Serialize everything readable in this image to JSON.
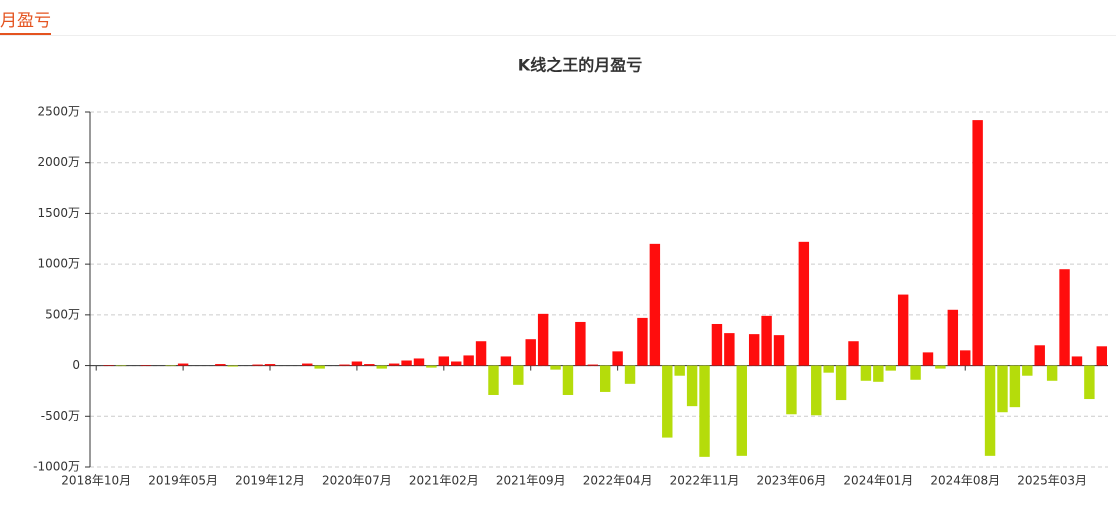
{
  "header": {
    "title": "月盈亏"
  },
  "chart_data": {
    "type": "bar",
    "title": "K线之王的月盈亏",
    "categories": [
      "2018年10月",
      null,
      null,
      null,
      null,
      null,
      null,
      "2019年05月",
      null,
      null,
      null,
      null,
      null,
      null,
      "2019年12月",
      null,
      null,
      null,
      null,
      null,
      null,
      "2020年07月",
      null,
      null,
      null,
      null,
      null,
      null,
      "2021年02月",
      null,
      null,
      null,
      null,
      null,
      null,
      "2021年09月",
      null,
      null,
      null,
      null,
      null,
      null,
      "2022年04月",
      null,
      null,
      null,
      null,
      null,
      null,
      "2022年11月",
      null,
      null,
      null,
      null,
      null,
      null,
      "2023年06月",
      null,
      null,
      null,
      null,
      null,
      null,
      "2024年01月",
      null,
      null,
      null,
      null,
      null,
      null,
      "2024年08月",
      null,
      null,
      null,
      null,
      null,
      null,
      "2025年03月",
      null,
      null,
      null,
      null
    ],
    "values": [
      0,
      5,
      -5,
      0,
      5,
      0,
      -5,
      20,
      0,
      0,
      15,
      -10,
      0,
      10,
      15,
      0,
      0,
      20,
      -30,
      0,
      10,
      40,
      15,
      -30,
      20,
      50,
      70,
      -20,
      90,
      40,
      100,
      240,
      -290,
      90,
      -190,
      260,
      510,
      -40,
      -290,
      430,
      10,
      -260,
      140,
      -180,
      470,
      1200,
      -710,
      -100,
      -400,
      -900,
      410,
      320,
      -890,
      310,
      490,
      300,
      -480,
      1220,
      -490,
      -70,
      -340,
      240,
      -150,
      -160,
      -50,
      700,
      -140,
      130,
      -30,
      550,
      150,
      2420,
      -890,
      -460,
      -410,
      -100,
      200,
      -150,
      950,
      90,
      -330,
      190
    ],
    "colors": {
      "positive": "#ff0d0d",
      "negative": "#b5dc0b"
    },
    "ylim": [
      -1000,
      2500
    ],
    "yticks": [
      {
        "value": -1000,
        "label": "-1000万"
      },
      {
        "value": -500,
        "label": "-500万"
      },
      {
        "value": 0,
        "label": "0"
      },
      {
        "value": 500,
        "label": "500万"
      },
      {
        "value": 1000,
        "label": "1000万"
      },
      {
        "value": 1500,
        "label": "1500万"
      },
      {
        "value": 2000,
        "label": "2000万"
      },
      {
        "value": 2500,
        "label": "2500万"
      }
    ],
    "grid": true
  }
}
